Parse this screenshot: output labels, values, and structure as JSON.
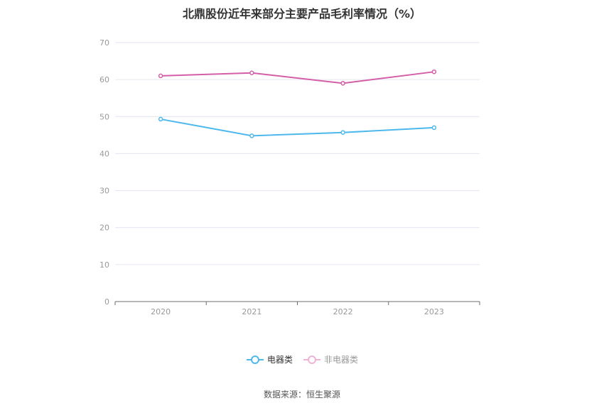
{
  "chart_data": {
    "type": "line",
    "title": "北鼎股份近年来部分主要产品毛利率情况（%）",
    "categories": [
      "2020",
      "2021",
      "2022",
      "2023"
    ],
    "ylim": [
      0,
      70
    ],
    "yticks": [
      0,
      10,
      20,
      30,
      40,
      50,
      60,
      70
    ],
    "grid": true,
    "legend_position": "bottom",
    "series": [
      {
        "name": "电器类",
        "values": [
          49.3,
          44.8,
          45.7,
          47.0
        ],
        "color": "#4db8ec"
      },
      {
        "name": "非电器类",
        "values": [
          61.0,
          61.8,
          59.0,
          62.1
        ],
        "color": "#d45ea7"
      }
    ]
  },
  "legend": {
    "items": [
      {
        "label": "电器类",
        "color": "#4db8ec",
        "active": true
      },
      {
        "label": "非电器类",
        "color": "#f0b3d8",
        "active": false
      }
    ]
  },
  "source": "数据来源：恒生聚源"
}
